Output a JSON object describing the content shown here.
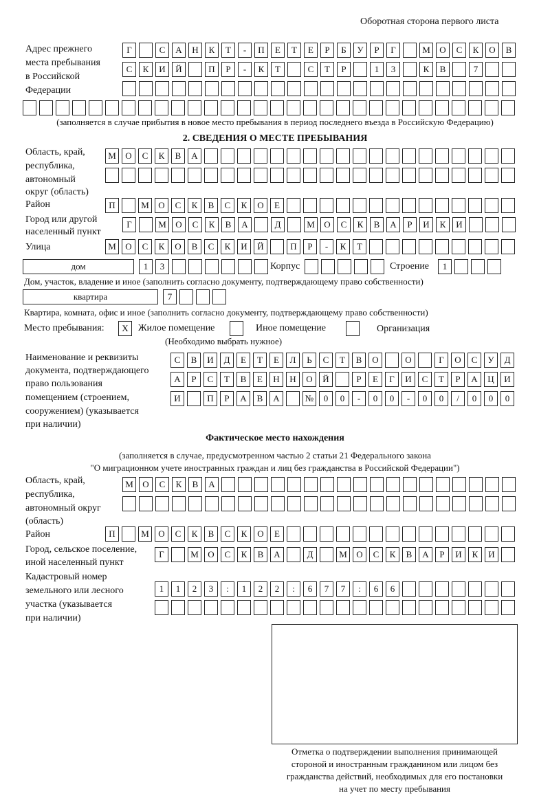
{
  "header": "Оборотная сторона первого листа",
  "previous_address": {
    "label": [
      "Адрес прежнего",
      "места пребывания",
      "в Российской",
      "Федерации"
    ],
    "rows": [
      [
        "Г",
        "",
        "С",
        "А",
        "Н",
        "К",
        "Т",
        "-",
        "П",
        "Е",
        "Т",
        "Е",
        "Р",
        "Б",
        "У",
        "Р",
        "Г",
        "",
        "М",
        "О",
        "С",
        "К",
        "О",
        "В"
      ],
      [
        "С",
        "К",
        "И",
        "Й",
        "",
        "П",
        "Р",
        "-",
        "К",
        "Т",
        "",
        "С",
        "Т",
        "Р",
        "",
        "1",
        "3",
        "",
        "К",
        "В",
        "",
        "7",
        "",
        ""
      ],
      [
        "",
        "",
        "",
        "",
        "",
        "",
        "",
        "",
        "",
        "",
        "",
        "",
        "",
        "",
        "",
        "",
        "",
        "",
        "",
        "",
        "",
        "",
        "",
        ""
      ],
      [
        "",
        "",
        "",
        "",
        "",
        "",
        "",
        "",
        "",
        "",
        "",
        "",
        "",
        "",
        "",
        "",
        "",
        "",
        "",
        "",
        "",
        "",
        "",
        "",
        "",
        "",
        "",
        "",
        "",
        ""
      ]
    ],
    "note": "(заполняется в случае прибытия в новое место пребывания в период последнего въезда в Российскую Федерацию)"
  },
  "section2": {
    "title": "2. СВЕДЕНИЯ О МЕСТЕ ПРЕБЫВАНИЯ",
    "region_label": [
      "Область, край,",
      "республика,",
      "автономный",
      "округ (область)"
    ],
    "region_rows": [
      [
        "М",
        "О",
        "С",
        "К",
        "В",
        "А",
        "",
        "",
        "",
        "",
        "",
        "",
        "",
        "",
        "",
        "",
        "",
        "",
        "",
        "",
        "",
        "",
        "",
        "",
        ""
      ],
      [
        "",
        "",
        "",
        "",
        "",
        "",
        "",
        "",
        "",
        "",
        "",
        "",
        "",
        "",
        "",
        "",
        "",
        "",
        "",
        "",
        "",
        "",
        "",
        "",
        ""
      ]
    ],
    "district_label": "Район",
    "district_row": [
      "П",
      "",
      "М",
      "О",
      "С",
      "К",
      "В",
      "С",
      "К",
      "О",
      "Е",
      "",
      "",
      "",
      "",
      "",
      "",
      "",
      "",
      "",
      "",
      "",
      "",
      "",
      ""
    ],
    "city_label": [
      "Город или другой",
      "населенный пункт"
    ],
    "city_row": [
      "Г",
      "",
      "М",
      "О",
      "С",
      "К",
      "В",
      "А",
      "",
      "Д",
      "",
      "М",
      "О",
      "С",
      "К",
      "В",
      "А",
      "Р",
      "И",
      "К",
      "И",
      "",
      "",
      ""
    ],
    "street_label": "Улица",
    "street_row": [
      "М",
      "О",
      "С",
      "К",
      "О",
      "В",
      "С",
      "К",
      "И",
      "Й",
      "",
      "П",
      "Р",
      "-",
      "К",
      "Т",
      "",
      "",
      "",
      "",
      "",
      "",
      "",
      "",
      ""
    ],
    "house_type": "дом",
    "house_cells": [
      "1",
      "3",
      "",
      "",
      "",
      "",
      "",
      ""
    ],
    "korpus_label": "Корпус",
    "korpus_cells": [
      "",
      "",
      "",
      "",
      ""
    ],
    "building_label": "Строение",
    "building_cells": [
      "1",
      "",
      "",
      ""
    ],
    "house_note": "Дом, участок, владение и иное (заполнить согласно документу, подтверждающему право собственности)",
    "flat_type": "квартира",
    "flat_cells": [
      "7",
      "",
      "",
      ""
    ],
    "flat_note": "Квартира, комната, офис и иное (заполнить согласно документу, подтверждающему право собственности)",
    "stay_place_label": "Место пребывания:",
    "options": [
      {
        "label": "Жилое помещение",
        "mark": "X"
      },
      {
        "label": "Иное помещение",
        "mark": ""
      },
      {
        "label": "Организация",
        "mark": ""
      }
    ],
    "choose_note": "(Необходимо выбрать нужное)",
    "doc_label": [
      "Наименование и реквизиты",
      "документа, подтверждающего",
      "право пользования",
      "помещением (строением,",
      "сооружением) (указывается",
      "при наличии)"
    ],
    "doc_rows": [
      [
        "С",
        "В",
        "И",
        "Д",
        "Е",
        "Т",
        "Е",
        "Л",
        "Ь",
        "С",
        "Т",
        "В",
        "О",
        "",
        "О",
        "",
        "Г",
        "О",
        "С",
        "У",
        "Д"
      ],
      [
        "А",
        "Р",
        "С",
        "Т",
        "В",
        "Е",
        "Н",
        "Н",
        "О",
        "Й",
        "",
        "Р",
        "Е",
        "Г",
        "И",
        "С",
        "Т",
        "Р",
        "А",
        "Ц",
        "И"
      ],
      [
        "И",
        "",
        "П",
        "Р",
        "А",
        "В",
        "А",
        "",
        "№",
        "0",
        "0",
        "-",
        "0",
        "0",
        "-",
        "0",
        "0",
        "/",
        "0",
        "0",
        "0"
      ]
    ]
  },
  "actual": {
    "title": "Фактическое место нахождения",
    "note1": "(заполняется в случае, предусмотренном частью 2 статьи 21 Федерального закона",
    "note2": "\"О миграционном учете иностранных граждан и лиц без гражданства в Российской Федерации\")",
    "region_label": [
      "Область, край,",
      "республика,",
      "автономный округ",
      "(область)"
    ],
    "region_rows": [
      [
        "М",
        "О",
        "С",
        "К",
        "В",
        "А",
        "",
        "",
        "",
        "",
        "",
        "",
        "",
        "",
        "",
        "",
        "",
        "",
        "",
        "",
        "",
        "",
        "",
        ""
      ],
      [
        "",
        "",
        "",
        "",
        "",
        "",
        "",
        "",
        "",
        "",
        "",
        "",
        "",
        "",
        "",
        "",
        "",
        "",
        "",
        "",
        "",
        "",
        "",
        ""
      ]
    ],
    "district_label": "Район",
    "district_row": [
      "П",
      "",
      "М",
      "О",
      "С",
      "К",
      "В",
      "С",
      "К",
      "О",
      "Е",
      "",
      "",
      "",
      "",
      "",
      "",
      "",
      "",
      "",
      "",
      "",
      "",
      "",
      ""
    ],
    "city_label": [
      "Город, сельское поселение,",
      "иной населенный пункт"
    ],
    "city_row": [
      "Г",
      "",
      "М",
      "О",
      "С",
      "К",
      "В",
      "А",
      "",
      "Д",
      "",
      "М",
      "О",
      "С",
      "К",
      "В",
      "А",
      "Р",
      "И",
      "К",
      "И",
      ""
    ],
    "cadastral_label": [
      "Кадастровый номер",
      "земельного или лесного",
      "участка (указывается",
      "при наличии)"
    ],
    "cadastral_rows": [
      [
        "1",
        "1",
        "2",
        "3",
        ":",
        "1",
        "2",
        "2",
        ":",
        "6",
        "7",
        "7",
        ":",
        "6",
        "6",
        "",
        "",
        "",
        "",
        "",
        "",
        ""
      ],
      [
        "",
        "",
        "",
        "",
        "",
        "",
        "",
        "",
        "",
        "",
        "",
        "",
        "",
        "",
        "",
        "",
        "",
        "",
        "",
        "",
        "",
        ""
      ]
    ]
  },
  "stamp_caption": [
    "Отметка о подтверждении выполнения принимающей",
    "стороной и иностранным гражданином или лицом без",
    "гражданства действий, необходимых для его постановки",
    "на учет по месту пребывания"
  ]
}
